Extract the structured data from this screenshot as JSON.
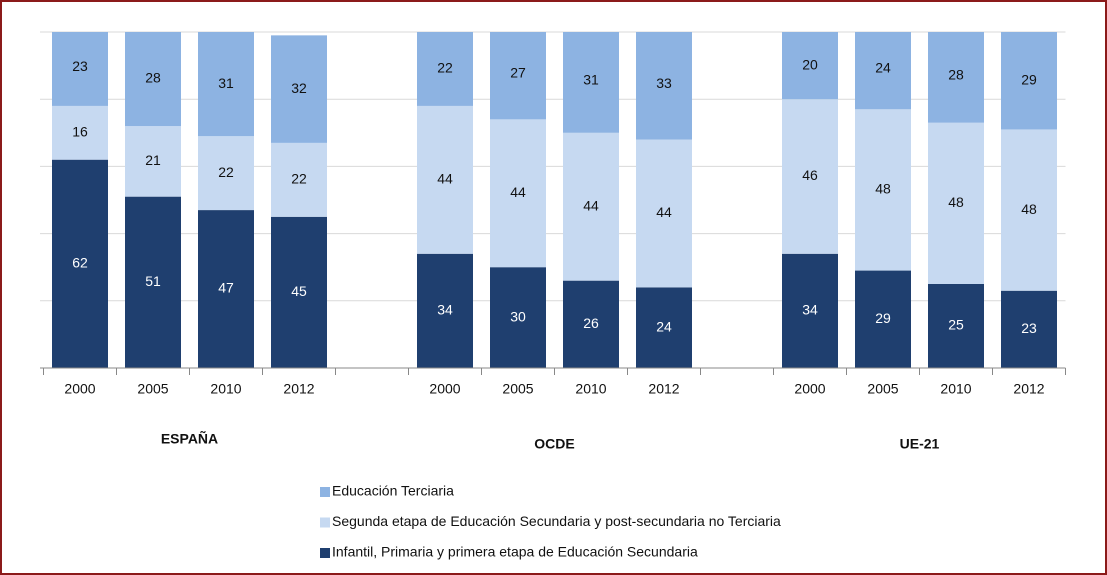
{
  "chart_data": {
    "type": "stacked-bar",
    "groups": [
      {
        "name": "ESPAÑA",
        "categories": [
          "2000",
          "2005",
          "2010",
          "2012"
        ]
      },
      {
        "name": "OCDE",
        "categories": [
          "2000",
          "2005",
          "2010",
          "2012"
        ]
      },
      {
        "name": "UE-21",
        "categories": [
          "2000",
          "2005",
          "2010",
          "2012"
        ]
      }
    ],
    "series": [
      {
        "name": "Infantil, Primaria y primera etapa de Educación Secundaria",
        "color": "#1f3f6f",
        "values": [
          62,
          51,
          47,
          45,
          34,
          30,
          26,
          24,
          34,
          29,
          25,
          23
        ]
      },
      {
        "name": "Segunda etapa de Educación Secundaria y post-secundaria no Terciaria",
        "color": "#c6d9f1",
        "values": [
          16,
          21,
          22,
          22,
          44,
          44,
          44,
          44,
          46,
          48,
          48,
          48
        ]
      },
      {
        "name": "Educación Terciaria",
        "color": "#8db3e2",
        "values": [
          23,
          28,
          31,
          32,
          22,
          27,
          31,
          33,
          20,
          24,
          28,
          29
        ]
      }
    ],
    "ylim": [
      0,
      100
    ],
    "yticks": [
      0,
      20,
      40,
      60,
      80,
      100
    ],
    "grid": true,
    "legend": "bottom"
  }
}
